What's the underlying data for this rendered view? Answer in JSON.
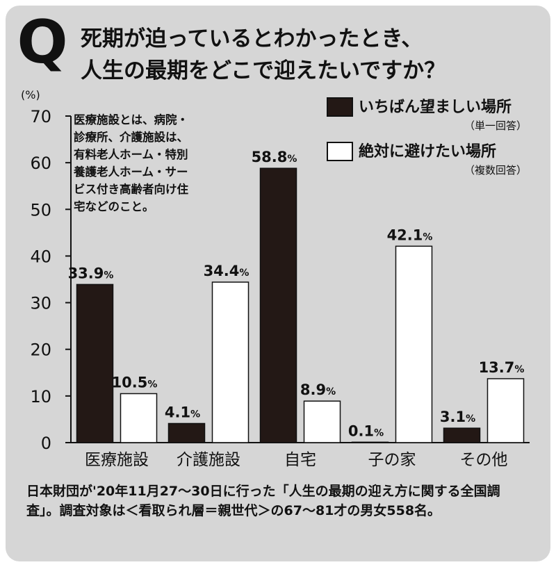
{
  "title": {
    "mark": "Q",
    "line1": "死期が迫っているとわかったとき、",
    "line2": "人生の最期をどこで迎えたいですか？"
  },
  "note": "医療施設とは、病院・\n診療所、介護施設は、\n有料老人ホーム・特別\n養護老人ホーム・サー\nビス付き高齢者向け住\n宅などのこと。",
  "legend": {
    "series1_label": "いちばん望ましい場所",
    "series1_note": "（単一回答）",
    "series2_label": "絶対に避けたい場所",
    "series2_note": "（複数回答）"
  },
  "footer": "日本財団が'20年11月27〜30日に行った「人生の最期の迎え方に関する全国調査」。調査対象は＜看取られ層＝親世代＞の67〜81才の男女558名。",
  "colors": {
    "series1": "#231815",
    "series2": "#ffffff",
    "background": "#d6d6d6"
  },
  "chart_data": {
    "type": "bar",
    "ylabel": "(%)",
    "ylim": [
      0,
      70
    ],
    "yticks": [
      "0",
      "10",
      "20",
      "30",
      "40",
      "50",
      "60",
      "70"
    ],
    "categories": [
      "医療施設",
      "介護施設",
      "自宅",
      "子の家",
      "その他"
    ],
    "series": [
      {
        "name": "いちばん望ましい場所",
        "values": [
          33.9,
          4.1,
          58.8,
          0.1,
          3.1
        ],
        "labels": [
          "33.9",
          "4.1",
          "58.8",
          "0.1",
          "3.1"
        ]
      },
      {
        "name": "絶対に避けたい場所",
        "values": [
          10.5,
          34.4,
          8.9,
          42.1,
          13.7
        ],
        "labels": [
          "10.5",
          "34.4",
          "8.9",
          "42.1",
          "13.7"
        ]
      }
    ],
    "unit": "%",
    "grid": false,
    "legend_position": "top-right"
  }
}
